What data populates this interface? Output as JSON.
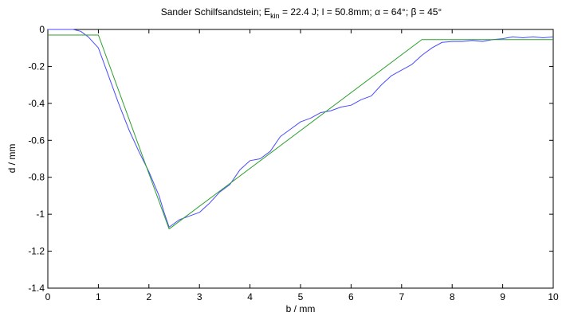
{
  "chart_data": {
    "type": "line",
    "title": {
      "prefix": "Sander Schilfsandstein; E",
      "subscript": "kin",
      "suffix": " = 22.4 J; l = 50.8mm; α = 64°; β = 45°"
    },
    "xlabel": "b / mm",
    "ylabel": "d / mm",
    "xlim": [
      0,
      10
    ],
    "ylim": [
      -1.4,
      0
    ],
    "xticks": [
      0,
      1,
      2,
      3,
      4,
      5,
      6,
      7,
      8,
      9,
      10
    ],
    "yticks": [
      0,
      -0.2,
      -0.4,
      -0.6,
      -0.8,
      -1,
      -1.2,
      -1.4
    ],
    "xtick_labels": [
      "0",
      "1",
      "2",
      "3",
      "4",
      "5",
      "6",
      "7",
      "8",
      "9",
      "10"
    ],
    "ytick_labels": [
      "0",
      "-0.2",
      "-0.4",
      "-0.6",
      "-0.8",
      "-1",
      "-1.2",
      "-1.4"
    ],
    "grid": false,
    "series": [
      {
        "color": "#4a4aff",
        "x": [
          0,
          0.5,
          0.65,
          0.8,
          1.0,
          1.2,
          1.4,
          1.6,
          1.8,
          2.0,
          2.2,
          2.3,
          2.4,
          2.5,
          2.6,
          2.8,
          3.0,
          3.2,
          3.4,
          3.6,
          3.8,
          4.0,
          4.2,
          4.4,
          4.6,
          4.8,
          5.0,
          5.2,
          5.4,
          5.6,
          5.8,
          6.0,
          6.2,
          6.4,
          6.6,
          6.8,
          7.0,
          7.2,
          7.4,
          7.6,
          7.8,
          8.0,
          8.2,
          8.4,
          8.6,
          8.8,
          9.0,
          9.2,
          9.4,
          9.6,
          9.8,
          10.0
        ],
        "y": [
          0.0,
          0.0,
          -0.01,
          -0.04,
          -0.1,
          -0.25,
          -0.4,
          -0.54,
          -0.66,
          -0.77,
          -0.9,
          -0.99,
          -1.07,
          -1.05,
          -1.03,
          -1.01,
          -0.99,
          -0.94,
          -0.88,
          -0.84,
          -0.76,
          -0.71,
          -0.7,
          -0.66,
          -0.58,
          -0.54,
          -0.5,
          -0.48,
          -0.45,
          -0.44,
          -0.42,
          -0.41,
          -0.38,
          -0.36,
          -0.3,
          -0.25,
          -0.22,
          -0.19,
          -0.14,
          -0.1,
          -0.07,
          -0.065,
          -0.065,
          -0.06,
          -0.065,
          -0.055,
          -0.05,
          -0.04,
          -0.045,
          -0.04,
          -0.045,
          -0.04
        ]
      },
      {
        "color": "#2ca02c",
        "x": [
          0,
          1.0,
          2.4,
          7.4,
          10.0
        ],
        "y": [
          -0.03,
          -0.03,
          -1.08,
          -0.055,
          -0.055
        ]
      }
    ]
  }
}
